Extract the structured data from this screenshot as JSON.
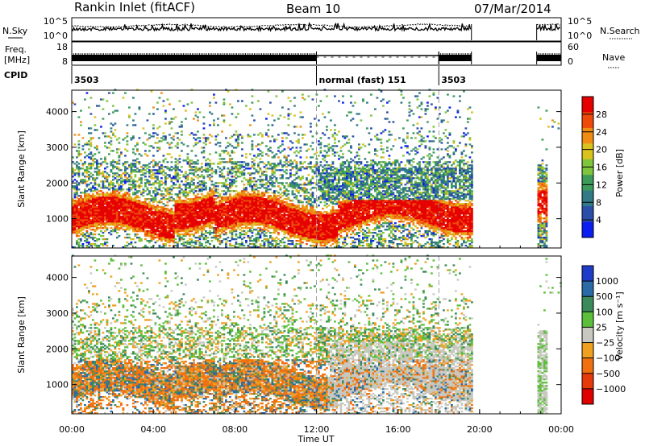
{
  "header": {
    "station": "Rankin Inlet (fitACF)",
    "beam": "Beam 10",
    "date": "07/Mar/2014"
  },
  "chart_data": [
    {
      "type": "line",
      "panel": "noise",
      "left_label": "N.Sky",
      "right_label": "N.Search",
      "left_ticks": [
        "10^5",
        "10^0"
      ],
      "right_ticks": [
        "10^5",
        "10^0"
      ],
      "gaps_hours": [
        [
          19.6,
          22.8
        ]
      ],
      "segments_hours": [
        [
          0,
          19.6
        ],
        [
          22.8,
          24
        ]
      ]
    },
    {
      "type": "line",
      "panel": "frequency",
      "left_label": "Freq.",
      "left_unit": "[MHz]",
      "right_label": "Nave",
      "left_ticks": [
        "18",
        "8"
      ],
      "right_ticks": [
        "60",
        "0"
      ],
      "regimes": [
        {
          "start": 0,
          "end": 12.0,
          "kind": "dense"
        },
        {
          "start": 12.0,
          "end": 18.0,
          "kind": "sparse"
        },
        {
          "start": 18.0,
          "end": 19.6,
          "kind": "dense"
        },
        {
          "start": 22.8,
          "end": 24.0,
          "kind": "dense"
        }
      ]
    },
    {
      "type": "table",
      "panel": "cpid",
      "label": "CPID",
      "entries": [
        {
          "start": 0,
          "text": "3503"
        },
        {
          "start": 12.0,
          "text": "normal (fast) 151"
        },
        {
          "start": 18.0,
          "text": "3503"
        }
      ]
    },
    {
      "type": "heatmap",
      "panel": "power",
      "ylabel": "Slant Range [km]",
      "ylim": [
        180,
        4600
      ],
      "yticks": [
        1000,
        2000,
        3000,
        4000
      ],
      "colorbar_label": "Power [dB]",
      "colorbar_ticks": [
        4,
        8,
        12,
        16,
        20,
        24,
        28
      ],
      "colorbar_range": [
        0,
        32
      ],
      "colors": [
        "#0a1ef0",
        "#2b4fa8",
        "#317a86",
        "#3c9b5a",
        "#7ec43c",
        "#d9c21e",
        "#f08c14",
        "#f04a0a",
        "#e60000"
      ]
    },
    {
      "type": "heatmap",
      "panel": "velocity",
      "ylabel": "Slant Range [km]",
      "ylim": [
        180,
        4600
      ],
      "yticks": [
        1000,
        2000,
        3000,
        4000
      ],
      "xlabel": "Time UT",
      "xticks": [
        "00:00",
        "04:00",
        "08:00",
        "12:00",
        "16:00",
        "20:00",
        "00:00"
      ],
      "xlim_hours": [
        0,
        24
      ],
      "colorbar_label": "Velocity [m s⁻¹]",
      "colorbar_ticks": [
        "1000",
        "500",
        "100",
        "25",
        "−25",
        "−100",
        "−500",
        "−1000"
      ],
      "colors": [
        "#1e3cc8",
        "#2a6aa6",
        "#3a8a5a",
        "#5cbf3c",
        "#c8c8c0",
        "#f0a020",
        "#f07010",
        "#e63a0a",
        "#e00000"
      ]
    }
  ]
}
